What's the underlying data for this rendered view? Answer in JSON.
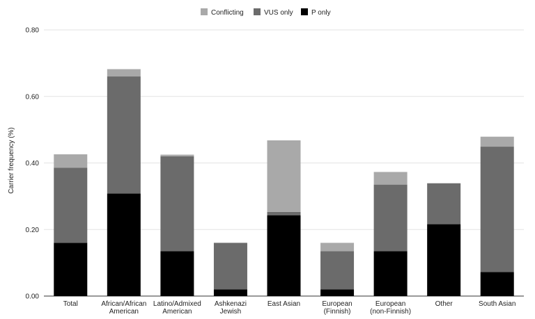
{
  "chart_data": {
    "type": "bar",
    "stacked": true,
    "title": "",
    "xlabel": "",
    "ylabel": "Carrier frequency (%)",
    "ylim": [
      0,
      0.8
    ],
    "yticks": [
      "0.00",
      "0.20",
      "0.40",
      "0.60",
      "0.80"
    ],
    "grid": true,
    "legend_position": "top",
    "categories": [
      "Total",
      "African/African American",
      "Latino/Admixed American",
      "Ashkenazi Jewish",
      "East Asian",
      "European (Finnish)",
      "European (non-Finnish)",
      "Other",
      "South Asian"
    ],
    "category_lines": [
      [
        "Total"
      ],
      [
        "African/African",
        "American"
      ],
      [
        "Latino/Admixed",
        "American"
      ],
      [
        "Ashkenazi",
        "Jewish"
      ],
      [
        "East Asian"
      ],
      [
        "European",
        "(Finnish)"
      ],
      [
        "European",
        "(non-Finnish)"
      ],
      [
        "Other"
      ],
      [
        "South Asian"
      ]
    ],
    "series": [
      {
        "name": "P only",
        "color": "#000000",
        "values": [
          0.16,
          0.308,
          0.135,
          0.02,
          0.243,
          0.02,
          0.135,
          0.216,
          0.072
        ]
      },
      {
        "name": "VUS only",
        "color": "#6b6b6b",
        "values": [
          0.226,
          0.352,
          0.285,
          0.14,
          0.01,
          0.115,
          0.2,
          0.123,
          0.377
        ]
      },
      {
        "name": "Conflicting",
        "color": "#a9a9a9",
        "values": [
          0.04,
          0.022,
          0.005,
          0.0,
          0.215,
          0.025,
          0.038,
          0.0,
          0.03
        ]
      }
    ],
    "legend_order": [
      "Conflicting",
      "VUS only",
      "P only"
    ]
  }
}
